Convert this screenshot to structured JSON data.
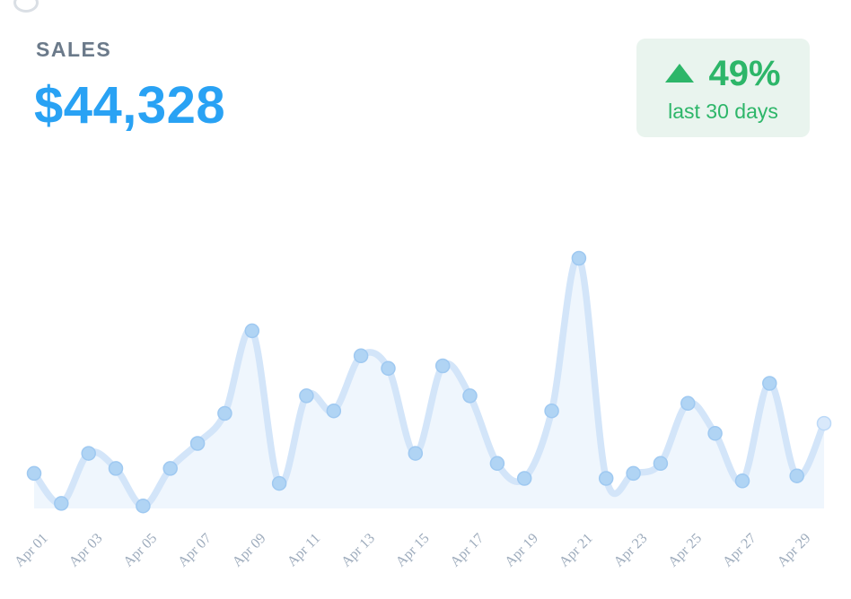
{
  "header": {
    "title": "SALES",
    "value": "$44,328"
  },
  "badge": {
    "percent": "49%",
    "period": "last 30 days",
    "direction": "up"
  },
  "colors": {
    "title": "#6b7a8a",
    "value": "#29a2f4",
    "green": "#2db669",
    "badge_bg": "#e9f4ee",
    "line": "#d3e5f9",
    "area": "#eff6fd",
    "dot_fill": "#b0d4f4",
    "dot_stroke": "#9fc9f1",
    "last_dot_fill": "#d9e9fb",
    "last_dot_stroke": "#bcd9f8",
    "tick": "#9dabbc"
  },
  "chart_data": {
    "type": "area",
    "title": "SALES",
    "subtitle": "",
    "xlabel": "",
    "ylabel": "",
    "grid": false,
    "legend": false,
    "ylim": [
      0,
      100
    ],
    "x": [
      "Apr 01",
      "Apr 02",
      "Apr 03",
      "Apr 04",
      "Apr 05",
      "Apr 06",
      "Apr 07",
      "Apr 08",
      "Apr 09",
      "Apr 10",
      "Apr 11",
      "Apr 12",
      "Apr 13",
      "Apr 14",
      "Apr 15",
      "Apr 16",
      "Apr 17",
      "Apr 18",
      "Apr 19",
      "Apr 20",
      "Apr 21",
      "Apr 22",
      "Apr 23",
      "Apr 24",
      "Apr 25",
      "Apr 26",
      "Apr 27",
      "Apr 28",
      "Apr 29",
      "Apr 30"
    ],
    "values": [
      14,
      2,
      22,
      16,
      1,
      16,
      26,
      38,
      71,
      10,
      45,
      39,
      61,
      56,
      22,
      57,
      45,
      18,
      12,
      39,
      100,
      12,
      14,
      18,
      42,
      30,
      11,
      50,
      13,
      34
    ],
    "x_tick_labels": [
      "Apr 01",
      "Apr 03",
      "Apr 05",
      "Apr 07",
      "Apr 09",
      "Apr 11",
      "Apr 13",
      "Apr 15",
      "Apr 17",
      "Apr 19",
      "Apr 21",
      "Apr 23",
      "Apr 25",
      "Apr 27",
      "Apr 29"
    ],
    "x_tick_every": 2,
    "style": "smooth line with dots, light blue, area fill, no y axis"
  }
}
